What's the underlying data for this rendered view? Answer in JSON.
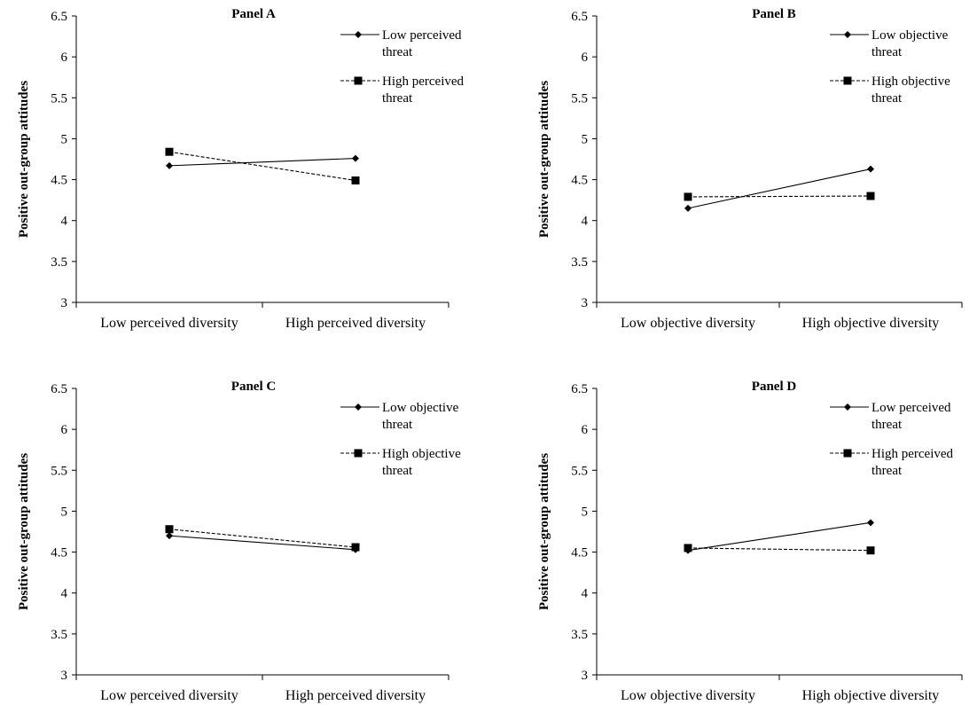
{
  "chart_data": [
    {
      "type": "line",
      "title": "Panel A",
      "ylabel": "Positive out-group attitudes",
      "xlabel": "",
      "categories": [
        "Low perceived diversity",
        "High perceived diversity"
      ],
      "ylim": [
        3,
        6.5
      ],
      "yticks": [
        "3",
        "3.5",
        "4",
        "4.5",
        "5",
        "5.5",
        "6",
        "6.5"
      ],
      "legend_position": "top-right",
      "series": [
        {
          "name": "Low perceived threat",
          "name_lines": [
            "Low perceived",
            "threat"
          ],
          "values": [
            4.67,
            4.76
          ],
          "style": "solid",
          "marker": "diamond"
        },
        {
          "name": "High perceived threat",
          "name_lines": [
            "High perceived",
            "threat"
          ],
          "values": [
            4.84,
            4.49
          ],
          "style": "dashed",
          "marker": "square"
        }
      ]
    },
    {
      "type": "line",
      "title": "Panel B",
      "ylabel": "Positive out-group attitudes",
      "xlabel": "",
      "categories": [
        "Low objective diversity",
        "High objective diversity"
      ],
      "ylim": [
        3,
        6.5
      ],
      "yticks": [
        "3",
        "3.5",
        "4",
        "4.5",
        "5",
        "5.5",
        "6",
        "6.5"
      ],
      "legend_position": "top-right",
      "series": [
        {
          "name": "Low objective threat",
          "name_lines": [
            "Low objective",
            "threat"
          ],
          "values": [
            4.15,
            4.63
          ],
          "style": "solid",
          "marker": "diamond"
        },
        {
          "name": "High objective threat",
          "name_lines": [
            "High objective",
            "threat"
          ],
          "values": [
            4.29,
            4.3
          ],
          "style": "dashed",
          "marker": "square"
        }
      ]
    },
    {
      "type": "line",
      "title": "Panel C",
      "ylabel": "Positive out-group attitudes",
      "xlabel": "",
      "categories": [
        "Low perceived diversity",
        "High perceived diversity"
      ],
      "ylim": [
        3,
        6.5
      ],
      "yticks": [
        "3",
        "3.5",
        "4",
        "4.5",
        "5",
        "5.5",
        "6",
        "6.5"
      ],
      "legend_position": "top-right",
      "series": [
        {
          "name": "Low objective threat",
          "name_lines": [
            "Low objective",
            "threat"
          ],
          "values": [
            4.7,
            4.53
          ],
          "style": "solid",
          "marker": "diamond"
        },
        {
          "name": "High objective threat",
          "name_lines": [
            "High objective",
            "threat"
          ],
          "values": [
            4.78,
            4.56
          ],
          "style": "dashed",
          "marker": "square"
        }
      ]
    },
    {
      "type": "line",
      "title": "Panel D",
      "ylabel": "Positive out-group attitudes",
      "xlabel": "",
      "categories": [
        "Low objective diversity",
        "High objective diversity"
      ],
      "ylim": [
        3,
        6.5
      ],
      "yticks": [
        "3",
        "3.5",
        "4",
        "4.5",
        "5",
        "5.5",
        "6",
        "6.5"
      ],
      "legend_position": "top-right",
      "series": [
        {
          "name": "Low perceived threat",
          "name_lines": [
            "Low perceived",
            "threat"
          ],
          "values": [
            4.52,
            4.86
          ],
          "style": "solid",
          "marker": "diamond"
        },
        {
          "name": "High perceived threat",
          "name_lines": [
            "High perceived",
            "threat"
          ],
          "values": [
            4.55,
            4.52
          ],
          "style": "dashed",
          "marker": "square"
        }
      ]
    }
  ]
}
